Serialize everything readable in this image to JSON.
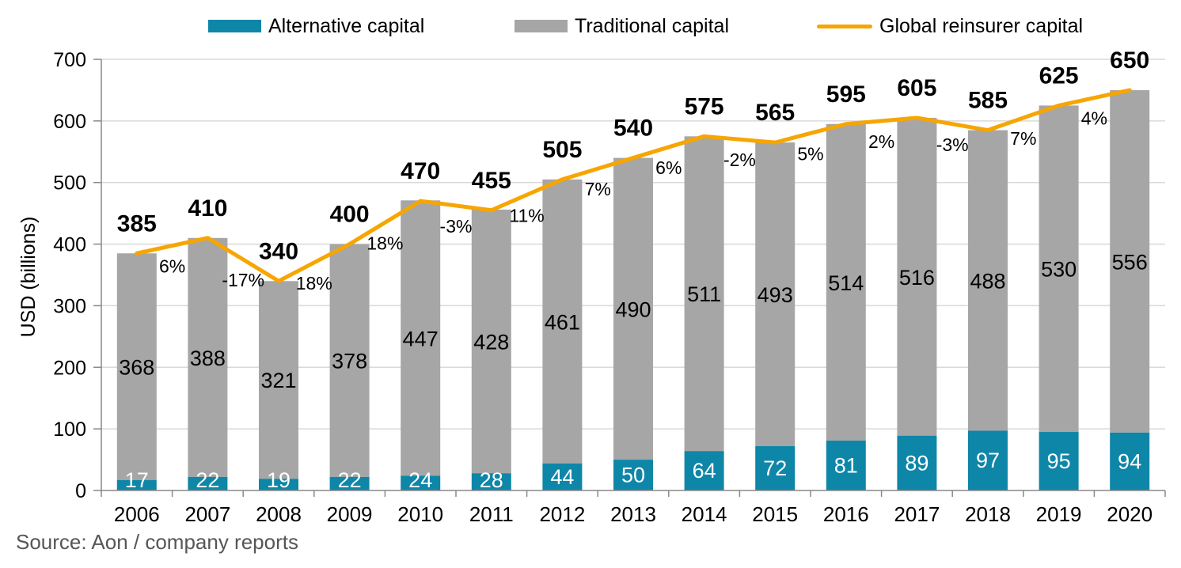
{
  "legend": {
    "items": [
      {
        "label": "Alternative capital",
        "color": "#0e86a8",
        "marker": "swatch"
      },
      {
        "label": "Traditional capital",
        "color": "#a6a6a6",
        "marker": "swatch"
      },
      {
        "label": "Global reinsurer capital",
        "color": "#f7a500",
        "marker": "line"
      }
    ]
  },
  "chart_data": {
    "type": "stacked-bar-line-combo",
    "categories": [
      "2006",
      "2007",
      "2008",
      "2009",
      "2010",
      "2011",
      "2012",
      "2013",
      "2014",
      "2015",
      "2016",
      "2017",
      "2018",
      "2019",
      "2020"
    ],
    "series": [
      {
        "name": "Alternative capital",
        "type": "bar",
        "stack": true,
        "color": "#0e86a8",
        "label_color": "#ffffff",
        "values": [
          17,
          22,
          19,
          22,
          24,
          28,
          44,
          50,
          64,
          72,
          81,
          89,
          97,
          95,
          94
        ]
      },
      {
        "name": "Traditional capital",
        "type": "bar",
        "stack": true,
        "color": "#a6a6a6",
        "label_color": "#000000",
        "values": [
          368,
          388,
          321,
          378,
          447,
          428,
          461,
          490,
          511,
          493,
          514,
          516,
          488,
          530,
          556
        ]
      },
      {
        "name": "Global reinsurer capital",
        "type": "line",
        "color": "#f7a500",
        "values": [
          385,
          410,
          340,
          400,
          470,
          455,
          505,
          540,
          575,
          565,
          595,
          605,
          585,
          625,
          650
        ]
      }
    ],
    "total_labels": [
      "385",
      "410",
      "340",
      "400",
      "470",
      "455",
      "505",
      "540",
      "575",
      "565",
      "595",
      "605",
      "585",
      "625",
      "650"
    ],
    "pct_change_labels": [
      "6%",
      "-17%",
      "18%",
      "18%",
      "-3%",
      "11%",
      "7%",
      "6%",
      "-2%",
      "5%",
      "2%",
      "-3%",
      "7%",
      "4%"
    ],
    "ylabel": "USD (billions)",
    "ylim": [
      0,
      700
    ],
    "ytick_interval": 100,
    "yticks": [
      "0",
      "100",
      "200",
      "300",
      "400",
      "500",
      "600",
      "700"
    ],
    "grid": "horizontal",
    "legend_position": "top",
    "colors": {
      "grid": "#d9d9d9",
      "axis": "#898989",
      "label_text": "#000000"
    }
  },
  "source": {
    "text": "Source: Aon / company reports",
    "color": "#55565a"
  }
}
